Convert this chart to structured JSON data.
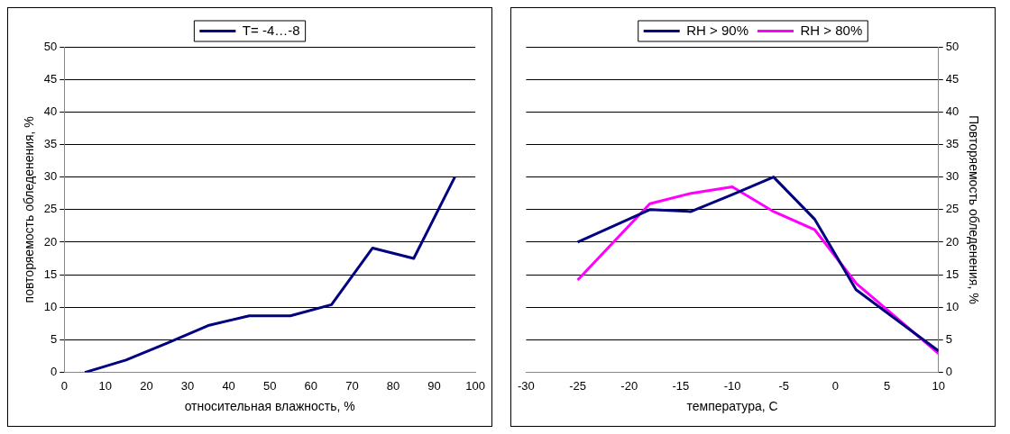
{
  "chart_data": [
    {
      "type": "line",
      "xlabel": "относительная влажность, %",
      "ylabel": "повторяемость обледенения, %",
      "x": [
        5,
        15,
        25,
        35,
        45,
        55,
        65,
        75,
        85,
        95
      ],
      "series": [
        {
          "name": "T= -4…-8",
          "color": "#000080",
          "values": [
            0,
            1.9,
            4.5,
            7.2,
            8.7,
            8.7,
            10.4,
            19.1,
            17.5,
            30
          ]
        }
      ],
      "xlim": [
        0,
        100
      ],
      "xticks": [
        0,
        10,
        20,
        30,
        40,
        50,
        60,
        70,
        80,
        90,
        100
      ],
      "ylim": [
        0,
        50
      ],
      "yticks": [
        0,
        5,
        10,
        15,
        20,
        25,
        30,
        35,
        40,
        45,
        50
      ],
      "grid": "y",
      "legend": "top",
      "marker": "none"
    },
    {
      "type": "line",
      "xlabel": "температура, С",
      "y2label": "Повторяемость обледенения, %",
      "x": [
        -25,
        -18,
        -14,
        -10,
        -6,
        -2,
        2,
        10
      ],
      "series": [
        {
          "name": "RH > 90%",
          "color": "#000080",
          "axis": "y2",
          "values": [
            20,
            25,
            24.7,
            27.3,
            30,
            23.5,
            12.7,
            3.3
          ]
        },
        {
          "name": "RH > 80%",
          "color": "#ff00ff",
          "axis": "y2",
          "values": [
            14.2,
            25.9,
            27.5,
            28.5,
            24.7,
            21.9,
            13.7,
            2.9
          ]
        }
      ],
      "xlim": [
        -30,
        10
      ],
      "xticks": [
        -30,
        -25,
        -20,
        -15,
        -10,
        -5,
        0,
        5,
        10
      ],
      "y2lim": [
        0,
        50
      ],
      "y2ticks": [
        0,
        5,
        10,
        15,
        20,
        25,
        30,
        35,
        40,
        45,
        50
      ],
      "grid": "y",
      "legend": "top",
      "marker": "none"
    }
  ]
}
